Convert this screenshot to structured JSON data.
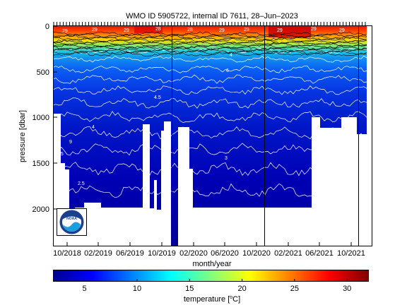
{
  "chart_data": {
    "type": "heatmap",
    "title": "WMO ID 5905722, internal ID 7611, 28–Jun–2023",
    "xlabel": "month/year",
    "ylabel": "pressure [dbar]",
    "x_ticks": [
      "10/2018",
      "02/2019",
      "06/2019",
      "10/2019",
      "02/2020",
      "06/2020",
      "10/2020",
      "02/2021",
      "06/2021",
      "10/2021"
    ],
    "y_ticks": [
      "0",
      "500",
      "1000",
      "1500",
      "2000"
    ],
    "y_tick_values": [
      0,
      500,
      1000,
      1500,
      2000
    ],
    "ylim": [
      0,
      2400
    ],
    "y_reversed": true,
    "colorbar": {
      "label_prefix": "temperature [",
      "label_sup": "o",
      "label_suffix": "C]",
      "ticks": [
        "5",
        "10",
        "15",
        "20",
        "25",
        "30"
      ],
      "tick_values": [
        5,
        10,
        15,
        20,
        25,
        30
      ],
      "range": [
        2,
        32
      ],
      "colormap": "jet"
    },
    "surface_temperature_c": 29,
    "deep_temperature_c": 2.5,
    "contour_labels": [
      "29",
      "29",
      "29",
      "28",
      "28",
      "29",
      "29",
      "29",
      "29",
      "29",
      "6",
      "4.5",
      "4",
      "9",
      "2.5",
      "3",
      "4",
      "2.5"
    ],
    "logo": "NOAA"
  }
}
